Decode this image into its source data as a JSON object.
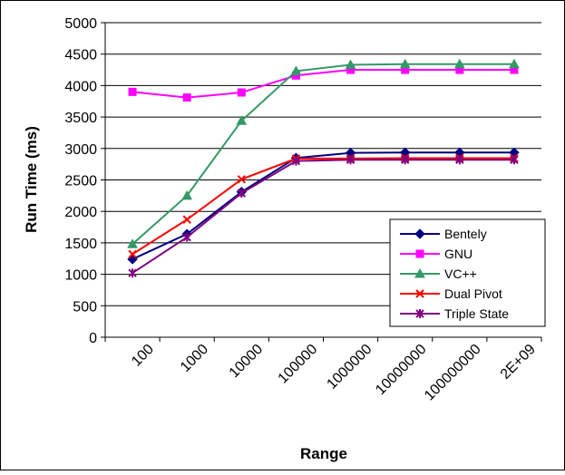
{
  "chart_data": {
    "type": "line",
    "title": "",
    "xlabel": "Range",
    "ylabel": "Run Time (ms)",
    "categories": [
      "100",
      "1000",
      "10000",
      "100000",
      "1000000",
      "10000000",
      "100000000",
      "2E+09"
    ],
    "ylim": [
      0,
      5000
    ],
    "yticks": [
      0,
      500,
      1000,
      1500,
      2000,
      2500,
      3000,
      3500,
      4000,
      4500,
      5000
    ],
    "grid": "horizontal",
    "legend_position": "right",
    "series": [
      {
        "name": "Bentely",
        "color": "#000080",
        "marker": "diamond",
        "values": [
          1240,
          1640,
          2310,
          2850,
          2930,
          2935,
          2935,
          2935
        ]
      },
      {
        "name": "GNU",
        "color": "#ff00ff",
        "marker": "square",
        "values": [
          3900,
          3810,
          3890,
          4160,
          4250,
          4250,
          4250,
          4250
        ]
      },
      {
        "name": "VC++",
        "color": "#339966",
        "marker": "triangle",
        "values": [
          1480,
          2250,
          3440,
          4230,
          4330,
          4340,
          4340,
          4340
        ]
      },
      {
        "name": "Dual Pivot",
        "color": "#ff0000",
        "marker": "x",
        "values": [
          1320,
          1870,
          2510,
          2840,
          2840,
          2845,
          2845,
          2845
        ]
      },
      {
        "name": "Triple State",
        "color": "#800080",
        "marker": "asterisk",
        "values": [
          1020,
          1590,
          2290,
          2800,
          2820,
          2820,
          2820,
          2820
        ]
      }
    ]
  }
}
